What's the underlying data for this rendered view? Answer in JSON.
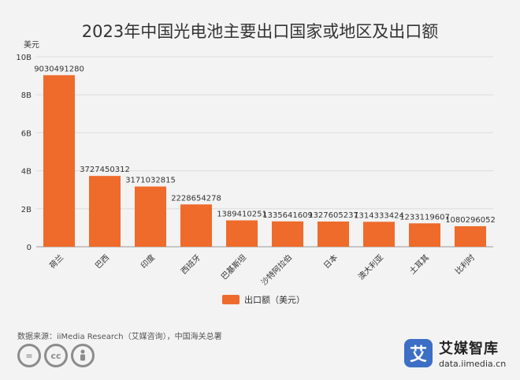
{
  "chart_data": {
    "type": "bar",
    "title": "2023年中国光电池主要出口国家或地区及出口额",
    "unit_label": "美元",
    "categories": [
      "荷兰",
      "巴西",
      "印度",
      "西班牙",
      "巴基斯坦",
      "沙特阿拉伯",
      "日本",
      "澳大利亚",
      "土耳其",
      "比利时"
    ],
    "series": [
      {
        "name": "出口额（美元）",
        "color": "#ee6b2b",
        "values": [
          9030491280,
          3727450312,
          3171032815,
          2228654278,
          1389410251,
          1335641609,
          1327605237,
          1314333424,
          1233119607,
          1080296052
        ],
        "labels": [
          "9030491280",
          "3727450312",
          "3171032815",
          "2228654278",
          "1389410251",
          "1335641609",
          "1327605237",
          "1314333424",
          "1233119607",
          "1080296052"
        ]
      }
    ],
    "ylim": [
      0,
      10000000000
    ],
    "yticks": [
      0,
      2000000000,
      4000000000,
      6000000000,
      8000000000,
      10000000000
    ],
    "ytick_labels": [
      "0",
      "2B",
      "4B",
      "6B",
      "8B",
      "10B"
    ],
    "grid": true,
    "legend": "bottom-center"
  },
  "source": "数据来源：iiMedia Research（艾媒咨询），中国海关总署",
  "license_icons": [
    "equals-icon",
    "cc-icon",
    "person-icon"
  ],
  "brand": {
    "name": "艾媒智库",
    "url": "data.iimedia.cn",
    "logo_char": "艾"
  }
}
